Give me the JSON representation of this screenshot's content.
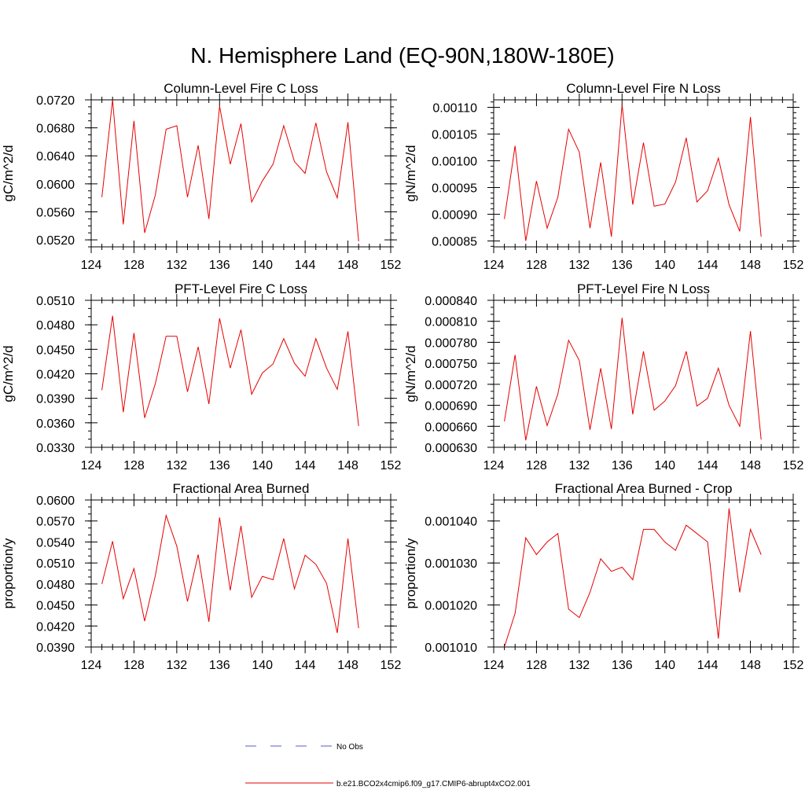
{
  "title": "N. Hemisphere Land (EQ-90N,180W-180E)",
  "legend": [
    {
      "label": "No Obs",
      "color": "#5a5acc",
      "dash": true
    },
    {
      "label": "b.e21.BCO2x4cmip6.f09_g17.CMIP6-abrupt4xCO2.001",
      "color": "#e60000",
      "dash": false
    }
  ],
  "chart_data": [
    {
      "type": "line",
      "title": "Column-Level Fire C Loss",
      "ylabel": "gC/m^2/d",
      "xlim": [
        124,
        152
      ],
      "xticks": [
        "124",
        "128",
        "132",
        "136",
        "140",
        "144",
        "148",
        "152"
      ],
      "ylim": [
        0.051,
        0.072
      ],
      "yticks": [
        "0.0520",
        "0.0560",
        "0.0600",
        "0.0640",
        "0.0680",
        "0.0720"
      ],
      "yminor": 0.001,
      "series": [
        {
          "name": "b.e21.BCO2x4cmip6.f09_g17.CMIP6-abrupt4xCO2.001",
          "color": "#e60000",
          "x": [
            125,
            126,
            127,
            128,
            129,
            130,
            131,
            132,
            133,
            134,
            135,
            136,
            137,
            138,
            139,
            140,
            141,
            142,
            143,
            144,
            145,
            146,
            147,
            148,
            149
          ],
          "y": [
            0.0581,
            0.072,
            0.0542,
            0.069,
            0.053,
            0.0584,
            0.0678,
            0.0683,
            0.0581,
            0.0655,
            0.055,
            0.0711,
            0.0628,
            0.0686,
            0.0574,
            0.0604,
            0.0628,
            0.0683,
            0.0632,
            0.0615,
            0.0687,
            0.0617,
            0.058,
            0.0688,
            0.0518
          ]
        }
      ]
    },
    {
      "type": "line",
      "title": "Column-Level Fire N Loss",
      "ylabel": "gN/m^2/d",
      "xlim": [
        124,
        152
      ],
      "xticks": [
        "124",
        "128",
        "132",
        "136",
        "140",
        "144",
        "148",
        "152"
      ],
      "ylim": [
        0.000839,
        0.001114
      ],
      "yticks": [
        "0.00085",
        "0.00090",
        "0.00095",
        "0.00100",
        "0.00105",
        "0.00110"
      ],
      "yminor": 1e-05,
      "series": [
        {
          "name": "b.e21.BCO2x4cmip6.f09_g17.CMIP6-abrupt4xCO2.001",
          "color": "#e60000",
          "x": [
            125,
            126,
            127,
            128,
            129,
            130,
            131,
            132,
            133,
            134,
            135,
            136,
            137,
            138,
            139,
            140,
            141,
            142,
            143,
            144,
            145,
            146,
            147,
            148,
            149
          ],
          "y": [
            0.000891,
            0.001028,
            0.00085,
            0.000962,
            0.000874,
            0.000932,
            0.001059,
            0.001016,
            0.000874,
            0.000997,
            0.000858,
            0.001105,
            0.000918,
            0.001034,
            0.000915,
            0.000919,
            0.00096,
            0.001043,
            0.000923,
            0.000944,
            0.001005,
            0.000918,
            0.000868,
            0.001082,
            0.000858
          ]
        }
      ]
    },
    {
      "type": "line",
      "title": "PFT-Level Fire C Loss",
      "ylabel": "gC/m^2/d",
      "xlim": [
        124,
        152
      ],
      "xticks": [
        "124",
        "128",
        "132",
        "136",
        "140",
        "144",
        "148",
        "152"
      ],
      "ylim": [
        0.033,
        0.051
      ],
      "yticks": [
        "0.0330",
        "0.0360",
        "0.0390",
        "0.0420",
        "0.0450",
        "0.0480",
        "0.0510"
      ],
      "yminor": 0.001,
      "series": [
        {
          "name": "b.e21.BCO2x4cmip6.f09_g17.CMIP6-abrupt4xCO2.001",
          "color": "#e60000",
          "x": [
            125,
            126,
            127,
            128,
            129,
            130,
            131,
            132,
            133,
            134,
            135,
            136,
            137,
            138,
            139,
            140,
            141,
            142,
            143,
            144,
            145,
            146,
            147,
            148,
            149
          ],
          "y": [
            0.04,
            0.0491,
            0.0373,
            0.047,
            0.0366,
            0.0408,
            0.0466,
            0.0466,
            0.0398,
            0.0453,
            0.0383,
            0.0488,
            0.0427,
            0.0474,
            0.0395,
            0.0421,
            0.0432,
            0.0463,
            0.0433,
            0.0417,
            0.0463,
            0.0427,
            0.0401,
            0.0472,
            0.0356
          ]
        }
      ]
    },
    {
      "type": "line",
      "title": "PFT-Level Fire N Loss",
      "ylabel": "gN/m^2/d",
      "xlim": [
        124,
        152
      ],
      "xticks": [
        "124",
        "128",
        "132",
        "136",
        "140",
        "144",
        "148",
        "152"
      ],
      "ylim": [
        0.00063,
        0.00084
      ],
      "yticks": [
        "0.000630",
        "0.000660",
        "0.000690",
        "0.000720",
        "0.000750",
        "0.000780",
        "0.000810",
        "0.000840"
      ],
      "yminor": 1e-05,
      "series": [
        {
          "name": "b.e21.BCO2x4cmip6.f09_g17.CMIP6-abrupt4xCO2.001",
          "color": "#e60000",
          "x": [
            125,
            126,
            127,
            128,
            129,
            130,
            131,
            132,
            133,
            134,
            135,
            136,
            137,
            138,
            139,
            140,
            141,
            142,
            143,
            144,
            145,
            146,
            147,
            148,
            149
          ],
          "y": [
            0.000667,
            0.000762,
            0.00064,
            0.000717,
            0.000661,
            0.000706,
            0.000783,
            0.000754,
            0.000655,
            0.000743,
            0.000656,
            0.000815,
            0.000677,
            0.000767,
            0.000683,
            0.000696,
            0.000718,
            0.000767,
            0.000689,
            0.0007,
            0.000743,
            0.00069,
            0.00066,
            0.000796,
            0.000641
          ]
        }
      ]
    },
    {
      "type": "line",
      "title": "Fractional Area Burned",
      "ylabel": "proportion/y",
      "xlim": [
        124,
        152
      ],
      "xticks": [
        "124",
        "128",
        "132",
        "136",
        "140",
        "144",
        "148",
        "152"
      ],
      "ylim": [
        0.039,
        0.06
      ],
      "yticks": [
        "0.0390",
        "0.0420",
        "0.0450",
        "0.0480",
        "0.0510",
        "0.0540",
        "0.0570",
        "0.0600"
      ],
      "yminor": 0.001,
      "series": [
        {
          "name": "b.e21.BCO2x4cmip6.f09_g17.CMIP6-abrupt4xCO2.001",
          "color": "#e60000",
          "x": [
            125,
            126,
            127,
            128,
            129,
            130,
            131,
            132,
            133,
            134,
            135,
            136,
            137,
            138,
            139,
            140,
            141,
            142,
            143,
            144,
            145,
            146,
            147,
            148,
            149
          ],
          "y": [
            0.048,
            0.0541,
            0.0459,
            0.0502,
            0.0427,
            0.0492,
            0.0578,
            0.0534,
            0.0455,
            0.0522,
            0.0426,
            0.0575,
            0.0471,
            0.0563,
            0.0461,
            0.0491,
            0.0486,
            0.0545,
            0.0473,
            0.0521,
            0.0508,
            0.0481,
            0.041,
            0.0545,
            0.0417
          ]
        }
      ]
    },
    {
      "type": "line",
      "title": "Fractional Area Burned - Crop",
      "ylabel": "proportion/y",
      "xlim": [
        124,
        152
      ],
      "xticks": [
        "124",
        "128",
        "132",
        "136",
        "140",
        "144",
        "148",
        "152"
      ],
      "ylim": [
        0.00101,
        0.001045
      ],
      "yticks": [
        "0.001010",
        "0.001020",
        "0.001030",
        "0.001040"
      ],
      "yminor": 2e-06,
      "series": [
        {
          "name": "b.e21.BCO2x4cmip6.f09_g17.CMIP6-abrupt4xCO2.001",
          "color": "#e60000",
          "x": [
            125,
            126,
            127,
            128,
            129,
            130,
            131,
            132,
            133,
            134,
            135,
            136,
            137,
            138,
            139,
            140,
            141,
            142,
            143,
            144,
            145,
            146,
            147,
            148,
            149
          ],
          "y": [
            0.00101,
            0.001018,
            0.001036,
            0.001032,
            0.001035,
            0.001037,
            0.001019,
            0.001017,
            0.001023,
            0.001031,
            0.001028,
            0.001029,
            0.001026,
            0.001038,
            0.001038,
            0.001035,
            0.001033,
            0.001039,
            0.001037,
            0.001035,
            0.001012,
            0.001043,
            0.001023,
            0.001038,
            0.001032
          ]
        }
      ]
    }
  ]
}
